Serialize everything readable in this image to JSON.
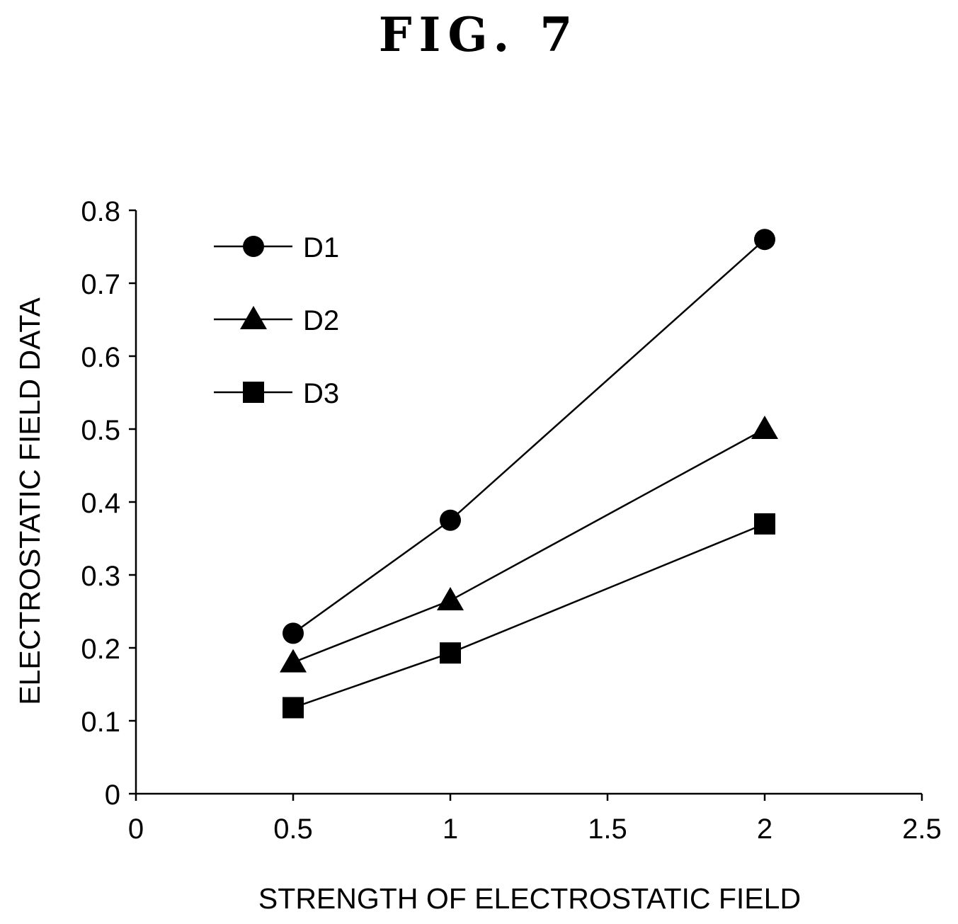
{
  "figure": {
    "title": "FIG. 7"
  },
  "chart_data": {
    "type": "line",
    "title": "",
    "xlabel": "STRENGTH OF ELECTROSTATIC FIELD",
    "ylabel": "ELECTROSTATIC FIELD DATA",
    "xlim": [
      0,
      2.5
    ],
    "ylim": [
      0,
      0.8
    ],
    "x_ticks": [
      0,
      0.5,
      1,
      1.5,
      2,
      2.5
    ],
    "x_tick_labels": [
      "0",
      "0.5",
      "1",
      "1.5",
      "2",
      "2.5"
    ],
    "y_ticks": [
      0,
      0.1,
      0.2,
      0.3,
      0.4,
      0.5,
      0.6,
      0.7,
      0.8
    ],
    "y_tick_labels": [
      "0",
      "0.1",
      "0.2",
      "0.3",
      "0.4",
      "0.5",
      "0.6",
      "0.7",
      "0.8"
    ],
    "grid": false,
    "legend_position": "top-left",
    "x": [
      0.5,
      1,
      2
    ],
    "series": [
      {
        "name": "D1",
        "marker": "circle",
        "values": [
          0.22,
          0.375,
          0.76
        ]
      },
      {
        "name": "D2",
        "marker": "triangle",
        "values": [
          0.18,
          0.265,
          0.5
        ]
      },
      {
        "name": "D3",
        "marker": "square",
        "values": [
          0.118,
          0.193,
          0.37
        ]
      }
    ],
    "colors": {
      "line": "#000000",
      "marker": "#000000"
    }
  }
}
